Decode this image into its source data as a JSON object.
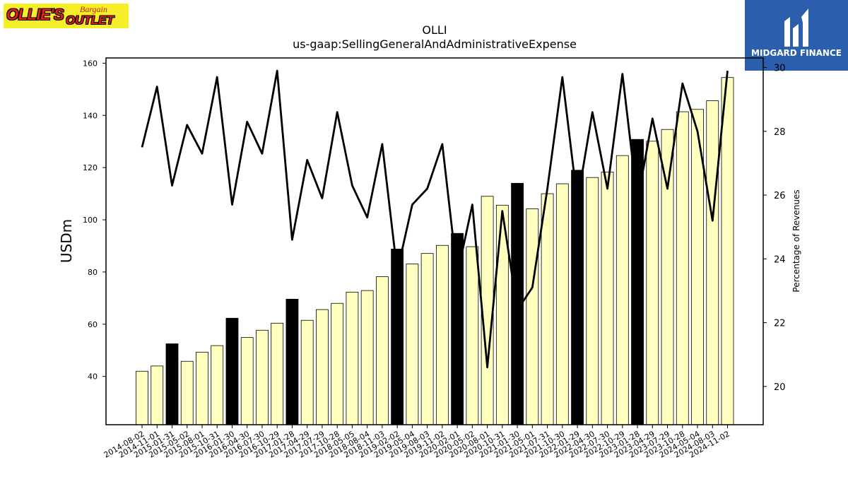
{
  "logos": {
    "left": {
      "main": "OLLIE'S",
      "word1": "Bargain",
      "word2": "OUTLET"
    },
    "right": {
      "name": "MIDGARD FINANCE"
    }
  },
  "chart_data": {
    "type": "bar",
    "title": "OLLI",
    "subtitle": "us-gaap:SellingGeneralAndAdministrativeExpense",
    "ylabel": "USDm",
    "y2label": "Percentage of Revenues",
    "ylim": [
      21.5,
      162
    ],
    "y2lim": [
      18.8,
      30.3
    ],
    "yticks": [
      40,
      60,
      80,
      100,
      120,
      140,
      160
    ],
    "y2ticks": [
      20,
      22,
      24,
      26,
      28,
      30
    ],
    "categories": [
      "2014-08-02",
      "2014-11-01",
      "2015-01-31",
      "2015-05-02",
      "2015-08-01",
      "2015-10-31",
      "2016-01-30",
      "2016-04-30",
      "2016-07-30",
      "2016-10-29",
      "2017-01-28",
      "2017-04-29",
      "2017-07-29",
      "2017-10-28",
      "2018-05-05",
      "2018-08-04",
      "2018-11-03",
      "2019-02-02",
      "2019-05-04",
      "2019-08-03",
      "2019-11-02",
      "2020-02-01",
      "2020-05-02",
      "2020-08-01",
      "2020-10-31",
      "2021-01-30",
      "2021-05-01",
      "2021-07-31",
      "2021-10-30",
      "2022-01-29",
      "2022-04-30",
      "2022-07-30",
      "2022-10-29",
      "2023-01-28",
      "2023-04-29",
      "2023-07-29",
      "2023-10-28",
      "2024-05-04",
      "2024-08-03",
      "2024-11-02"
    ],
    "series": [
      {
        "type": "bar",
        "values": [
          42.0,
          44.0,
          52.5,
          45.8,
          49.3,
          51.8,
          62.3,
          54.9,
          57.7,
          60.4,
          69.6,
          61.5,
          65.6,
          68.0,
          72.3,
          72.9,
          78.2,
          88.8,
          83.1,
          87.1,
          90.2,
          94.8,
          89.7,
          109.0,
          105.6,
          114.0,
          104.2,
          110.0,
          113.8,
          119.0,
          116.2,
          118.3,
          124.6,
          130.8,
          130.1,
          134.6,
          141.4,
          142.3,
          145.6,
          154.5
        ],
        "colors": [
          "#ffffc0",
          "#ffffc0",
          "#000000",
          "#ffffc0",
          "#ffffc0",
          "#ffffc0",
          "#000000",
          "#ffffc0",
          "#ffffc0",
          "#ffffc0",
          "#000000",
          "#ffffc0",
          "#ffffc0",
          "#ffffc0",
          "#ffffc0",
          "#ffffc0",
          "#ffffc0",
          "#000000",
          "#ffffc0",
          "#ffffc0",
          "#ffffc0",
          "#000000",
          "#ffffc0",
          "#ffffc0",
          "#ffffc0",
          "#000000",
          "#ffffc0",
          "#ffffc0",
          "#ffffc0",
          "#000000",
          "#ffffc0",
          "#ffffc0",
          "#ffffc0",
          "#000000",
          "#ffffc0",
          "#ffffc0",
          "#ffffc0",
          "#ffffc0",
          "#ffffc0",
          "#ffffc0"
        ]
      },
      {
        "type": "line",
        "axis": "right",
        "color": "#000000",
        "values": [
          27.5,
          29.4,
          26.3,
          28.2,
          27.3,
          29.7,
          25.7,
          28.3,
          27.3,
          29.9,
          24.6,
          27.1,
          25.9,
          28.6,
          26.3,
          25.3,
          27.6,
          23.6,
          25.7,
          26.2,
          27.6,
          23.5,
          25.7,
          20.6,
          25.5,
          22.4,
          23.1,
          26.2,
          29.7,
          25.8,
          28.6,
          26.2,
          29.8,
          25.8,
          28.4,
          26.2,
          29.5,
          28.0,
          25.2,
          29.9
        ]
      }
    ],
    "grid": false
  }
}
